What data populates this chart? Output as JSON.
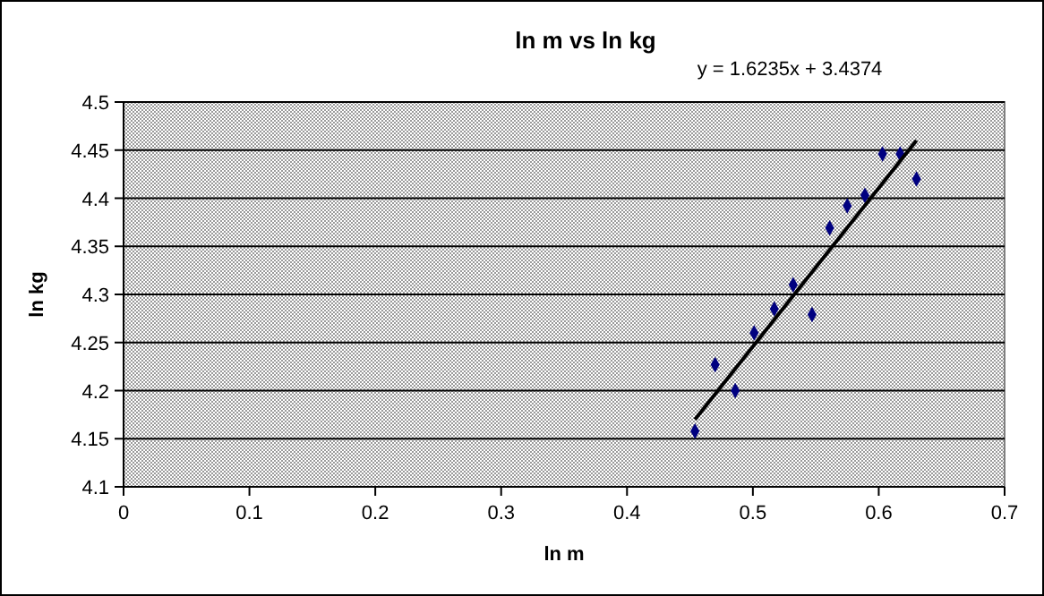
{
  "chart_data": {
    "type": "scatter",
    "title": "ln m vs ln kg",
    "xlabel": "ln m",
    "ylabel": "ln kg",
    "annotations": [
      "y = 1.6235x + 3.4374"
    ],
    "xlim": [
      0,
      0.7
    ],
    "xticks": [
      0,
      0.1,
      0.2,
      0.3,
      0.4,
      0.5,
      0.6,
      0.7
    ],
    "ylim": [
      4.1,
      4.5
    ],
    "yticks": [
      4.1,
      4.15,
      4.2,
      4.25,
      4.3,
      4.35,
      4.4,
      4.45,
      4.5
    ],
    "grid": "y",
    "series": [
      {
        "marker": "diamond",
        "color": "#000080",
        "x": [
          0.454,
          0.47,
          0.486,
          0.501,
          0.517,
          0.532,
          0.547,
          0.561,
          0.575,
          0.589,
          0.603,
          0.617,
          0.63
        ],
        "values": [
          4.158,
          4.227,
          4.2,
          4.26,
          4.285,
          4.31,
          4.279,
          4.369,
          4.392,
          4.403,
          4.446,
          4.446,
          4.42
        ]
      },
      {
        "type": "line",
        "color": "#000000",
        "x": [
          0.454,
          0.63
        ],
        "values": [
          4.17,
          4.46
        ]
      }
    ]
  }
}
